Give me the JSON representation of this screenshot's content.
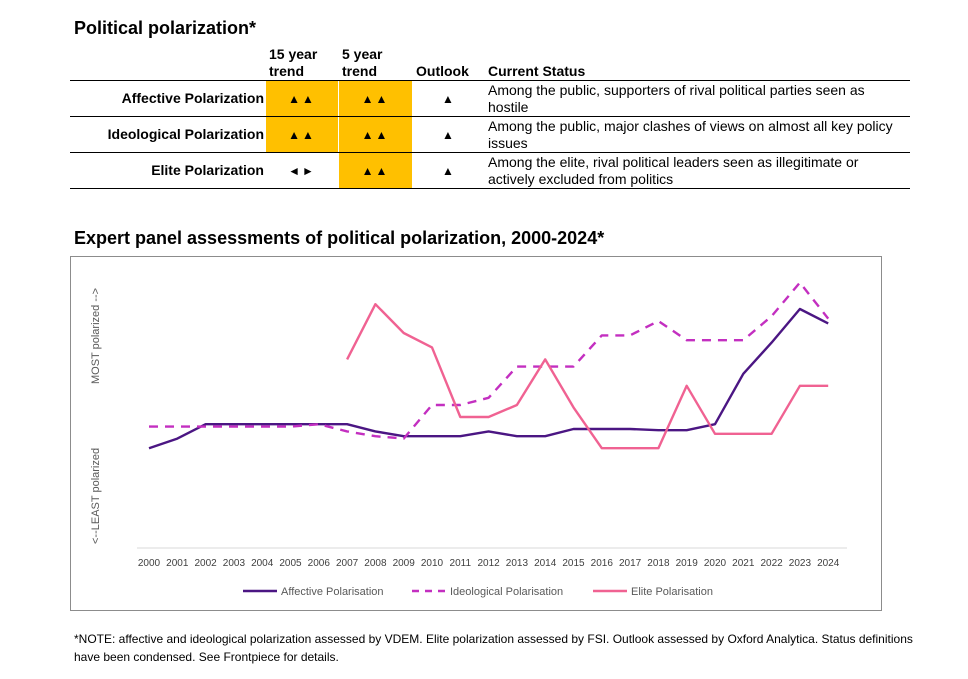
{
  "table": {
    "title": "Political polarization*",
    "headers": {
      "trend15": [
        "15 year",
        "trend"
      ],
      "trend5": [
        "5 year",
        "trend"
      ],
      "outlook": "Outlook",
      "status": "Current Status"
    },
    "rows": [
      {
        "label": "Affective Polarization",
        "trend15": "▲▲",
        "trend5": "▲▲",
        "outlook": "▲",
        "status": "Among the public, supporters of rival political parties seen as hostile",
        "highlight15": true,
        "highlight5": true
      },
      {
        "label": "Ideological Polarization",
        "trend15": "▲▲",
        "trend5": "▲▲",
        "outlook": "▲",
        "status": "Among the public, major clashes of views on almost all key policy issues",
        "highlight15": true,
        "highlight5": true
      },
      {
        "label": "Elite Polarization",
        "trend15": "◄►",
        "trend5": "▲▲",
        "outlook": "▲",
        "status": "Among the elite, rival political leaders seen as illegitimate or actively excluded from politics",
        "highlight15": false,
        "highlight5": true
      }
    ],
    "highlight_color": "#ffc000"
  },
  "chart_data": {
    "type": "line",
    "title": "Expert panel assessments of political polarization, 2000-2024*",
    "ylabel_top": "MOST polarized -->",
    "ylabel_bottom": "<--LEAST polarized",
    "x": [
      "2000",
      "2001",
      "2002",
      "2003",
      "2004",
      "2005",
      "2006",
      "2007",
      "2008",
      "2009",
      "2010",
      "2011",
      "2012",
      "2013",
      "2014",
      "2015",
      "2016",
      "2017",
      "2018",
      "2019",
      "2020",
      "2021",
      "2022",
      "2023",
      "2024"
    ],
    "ylim": [
      0,
      100
    ],
    "grid": false,
    "legend": "bottom",
    "series": [
      {
        "name": "Affective Polarisation",
        "color": "#4b1683",
        "dash": false,
        "values": [
          32,
          36,
          42,
          42,
          42,
          42,
          42,
          42,
          39,
          37,
          37,
          37,
          39,
          37,
          37,
          40,
          40,
          40,
          39.5,
          39.5,
          42,
          63,
          76,
          90,
          84
        ]
      },
      {
        "name": "Ideological Polarisation",
        "color": "#c32fc0",
        "dash": true,
        "values": [
          41,
          41,
          41,
          41,
          41,
          41,
          42,
          39,
          37,
          36,
          50,
          50,
          53,
          66,
          66,
          66,
          79,
          79,
          85,
          77,
          77,
          77,
          87,
          101,
          86
        ]
      },
      {
        "name": "Elite Polarisation",
        "color": "#f06292",
        "dash": false,
        "values": [
          null,
          null,
          null,
          null,
          null,
          null,
          null,
          69,
          92,
          80,
          74,
          45,
          45,
          50,
          69,
          49,
          32,
          32,
          32,
          58,
          38,
          38,
          38,
          58,
          58
        ]
      }
    ]
  },
  "note": "*NOTE: affective and ideological polarization assessed by VDEM. Elite polarization assessed by FSI. Outlook assessed by Oxford Analytica. Status definitions have been condensed. See Frontpiece for details."
}
